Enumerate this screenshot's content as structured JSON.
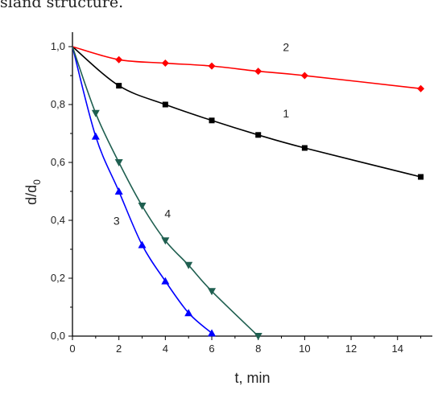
{
  "header_text": "sland structure.",
  "chart_data": {
    "type": "line",
    "title": "",
    "xlabel": "t, min",
    "ylabel": "d/d",
    "ylabel_subscript": "0",
    "xlim": [
      0,
      15.5
    ],
    "ylim": [
      0,
      1.05
    ],
    "x_ticks": [
      0,
      2,
      4,
      6,
      8,
      10,
      12,
      14
    ],
    "x_tick_labels": [
      "0",
      "2",
      "4",
      "6",
      "8",
      "10",
      "12",
      "14"
    ],
    "y_ticks": [
      0,
      0.2,
      0.4,
      0.6,
      0.8,
      1.0
    ],
    "y_tick_labels": [
      "0,0",
      "0,2",
      "0,4",
      "0,6",
      "0,8",
      "1,0"
    ],
    "grid": false,
    "legend": "none",
    "series": [
      {
        "label": "1",
        "color": "#000000",
        "marker": "square",
        "x": [
          0,
          2,
          4,
          6,
          8,
          10,
          15
        ],
        "y": [
          1.0,
          0.865,
          0.8,
          0.745,
          0.695,
          0.65,
          0.55
        ]
      },
      {
        "label": "2",
        "color": "#ff0000",
        "marker": "diamond",
        "x": [
          0,
          2,
          4,
          6,
          8,
          10,
          15
        ],
        "y": [
          1.0,
          0.955,
          0.943,
          0.933,
          0.915,
          0.9,
          0.855
        ]
      },
      {
        "label": "3",
        "color": "#0000ff",
        "marker": "triangle-up",
        "x": [
          0,
          1,
          2,
          3,
          4,
          5,
          6
        ],
        "y": [
          1.0,
          0.69,
          0.5,
          0.315,
          0.19,
          0.08,
          0.01
        ]
      },
      {
        "label": "4",
        "color": "#1f5f50",
        "marker": "triangle-down",
        "x": [
          0,
          1,
          2,
          3,
          4,
          5,
          6,
          8
        ],
        "y": [
          1.0,
          0.77,
          0.6,
          0.45,
          0.33,
          0.245,
          0.155,
          0.0
        ]
      }
    ]
  }
}
